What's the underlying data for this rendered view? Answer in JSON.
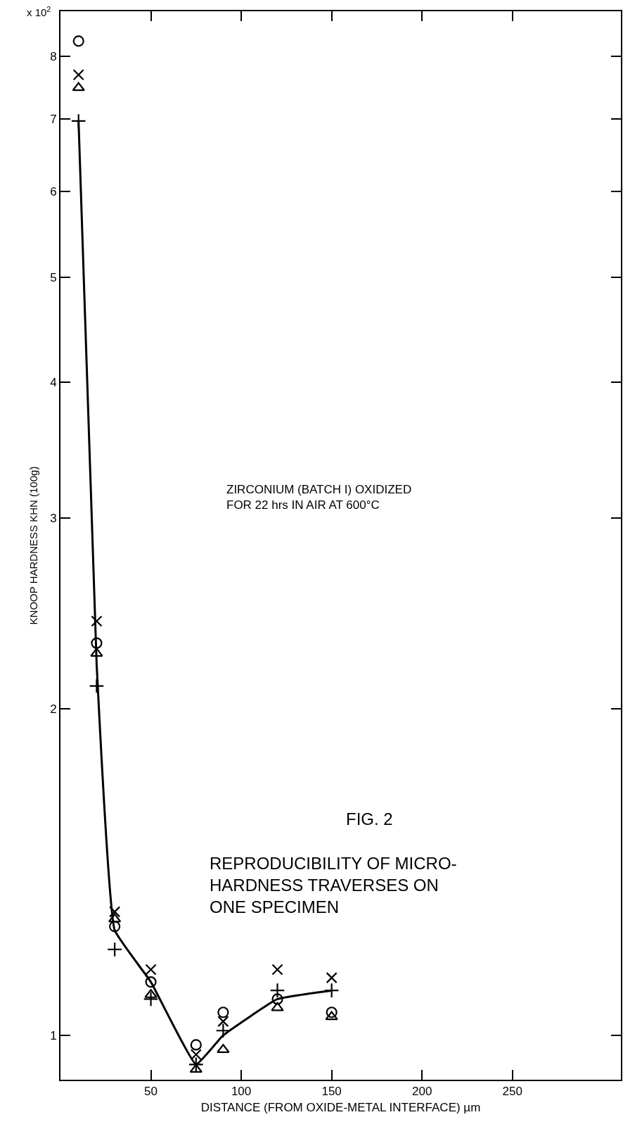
{
  "chart_data": {
    "type": "scatter",
    "xlabel": "DISTANCE (FROM OXIDE-METAL INTERFACE) µm",
    "ylabel": "KNOOP HARDNESS KHN (100g)",
    "annotations": [
      "x 10$^{2}$",
      "ZIRCONIUM (BATCH I) OXIDIZED\nFOR 22 hrs IN AIR AT 600°C",
      "FIG. 2",
      "REPRODUCIBILITY OF MICRO-\nHARDNESS TRAVERSES ON\nONE SPECIMEN"
    ],
    "x": [
      10,
      20,
      30,
      50,
      75,
      90,
      120,
      150
    ],
    "series": [
      {
        "color": "#000000",
        "marker": "circle",
        "values": [
          8.26,
          2.3,
          1.26,
          1.12,
          0.98,
          1.05,
          1.08,
          1.05
        ]
      },
      {
        "color": "#000000",
        "marker": "x",
        "values": [
          7.69,
          2.41,
          1.3,
          1.15,
          0.96,
          1.03,
          1.15,
          1.13
        ]
      },
      {
        "color": "#000000",
        "marker": "triangle",
        "values": [
          7.48,
          2.25,
          1.28,
          1.09,
          0.93,
          0.97,
          1.06,
          1.04
        ]
      },
      {
        "color": "#000000",
        "marker": "cross",
        "values": [
          6.97,
          2.1,
          1.2,
          1.08,
          0.94,
          1.01,
          1.1,
          1.1
        ]
      },
      {
        "type": "line",
        "color": "#000000",
        "marker": "none",
        "line_style": "solid",
        "values": [
          6.97,
          2.2,
          1.25,
          1.12,
          0.94,
          1.0,
          1.08,
          1.1
        ]
      }
    ],
    "log": "y",
    "xlim": [
      0,
      310
    ],
    "xticks": [
      50,
      100,
      150,
      200,
      250
    ],
    "ylim": [
      0.91,
      8.8
    ],
    "yticks": [
      1,
      2,
      3,
      4,
      5,
      6,
      7,
      8
    ],
    "grid": false
  }
}
